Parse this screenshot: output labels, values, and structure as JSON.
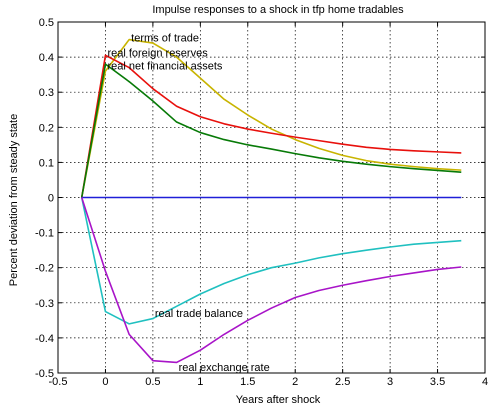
{
  "chart_data": {
    "type": "line",
    "title": "Impulse responses to a shock in tfp home tradables",
    "xlabel": "Years after shock",
    "ylabel": "Percent deviation from steady state",
    "xlim": [
      -0.5,
      4
    ],
    "ylim": [
      -0.5,
      0.5
    ],
    "xticks": [
      -0.5,
      0,
      0.5,
      1,
      1.5,
      2,
      2.5,
      3,
      3.5,
      4
    ],
    "xtick_labels": [
      "-0.5",
      "0",
      "0.5",
      "1",
      "1.5",
      "2",
      "2.5",
      "3",
      "3.5",
      "4"
    ],
    "yticks": [
      -0.5,
      -0.4,
      -0.3,
      -0.2,
      -0.1,
      0,
      0.1,
      0.2,
      0.3,
      0.4,
      0.5
    ],
    "ytick_labels": [
      "-0.5",
      "-0.4",
      "-0.3",
      "-0.2",
      "-0.1",
      "0",
      "0.1",
      "0.2",
      "0.3",
      "0.4",
      "0.5"
    ],
    "grid": true,
    "grid_style": "dotted",
    "x": [
      -0.25,
      0,
      0.25,
      0.5,
      0.75,
      1,
      1.25,
      1.5,
      1.75,
      2,
      2.25,
      2.5,
      2.75,
      3,
      3.25,
      3.5,
      3.75
    ],
    "series": [
      {
        "name": "terms of trade",
        "color": "#c8b400",
        "values": [
          0,
          0.36,
          0.45,
          0.44,
          0.4,
          0.34,
          0.28,
          0.235,
          0.195,
          0.165,
          0.14,
          0.12,
          0.105,
          0.095,
          0.088,
          0.082,
          0.078
        ]
      },
      {
        "name": "real foreign reserves",
        "color": "#e8100c",
        "values": [
          0,
          0.405,
          0.37,
          0.31,
          0.26,
          0.23,
          0.21,
          0.195,
          0.183,
          0.172,
          0.162,
          0.152,
          0.143,
          0.137,
          0.133,
          0.13,
          0.127
        ]
      },
      {
        "name": "real net financial assets",
        "color": "#077a07",
        "values": [
          0,
          0.38,
          0.33,
          0.275,
          0.215,
          0.185,
          0.165,
          0.15,
          0.138,
          0.125,
          0.113,
          0.103,
          0.095,
          0.088,
          0.082,
          0.077,
          0.072
        ]
      },
      {
        "name": "",
        "color": "#1f1fd8",
        "values": [
          0,
          0,
          0,
          0,
          0,
          0,
          0,
          0,
          0,
          0,
          0,
          0,
          0,
          0,
          0,
          0,
          0
        ]
      },
      {
        "name": "real trade balance",
        "color": "#20c0c0",
        "values": [
          0,
          -0.325,
          -0.36,
          -0.345,
          -0.31,
          -0.275,
          -0.245,
          -0.22,
          -0.2,
          -0.187,
          -0.172,
          -0.16,
          -0.15,
          -0.141,
          -0.133,
          -0.128,
          -0.123
        ]
      },
      {
        "name": "real exchange rate",
        "color": "#a814c8",
        "values": [
          0,
          -0.21,
          -0.39,
          -0.465,
          -0.47,
          -0.435,
          -0.39,
          -0.35,
          -0.315,
          -0.285,
          -0.265,
          -0.25,
          -0.237,
          -0.225,
          -0.215,
          -0.205,
          -0.198
        ]
      }
    ],
    "annotations": [
      {
        "text": "terms of trade",
        "x": 0.25,
        "y": 0.445
      },
      {
        "text": "real foreign reserves",
        "x": 0.0,
        "y": 0.402
      },
      {
        "text": "real net financial assets",
        "x": 0.0,
        "y": 0.365
      },
      {
        "text": "real trade balance",
        "x": 0.5,
        "y": -0.34
      },
      {
        "text": "real exchange rate",
        "x": 0.75,
        "y": -0.495
      }
    ]
  }
}
